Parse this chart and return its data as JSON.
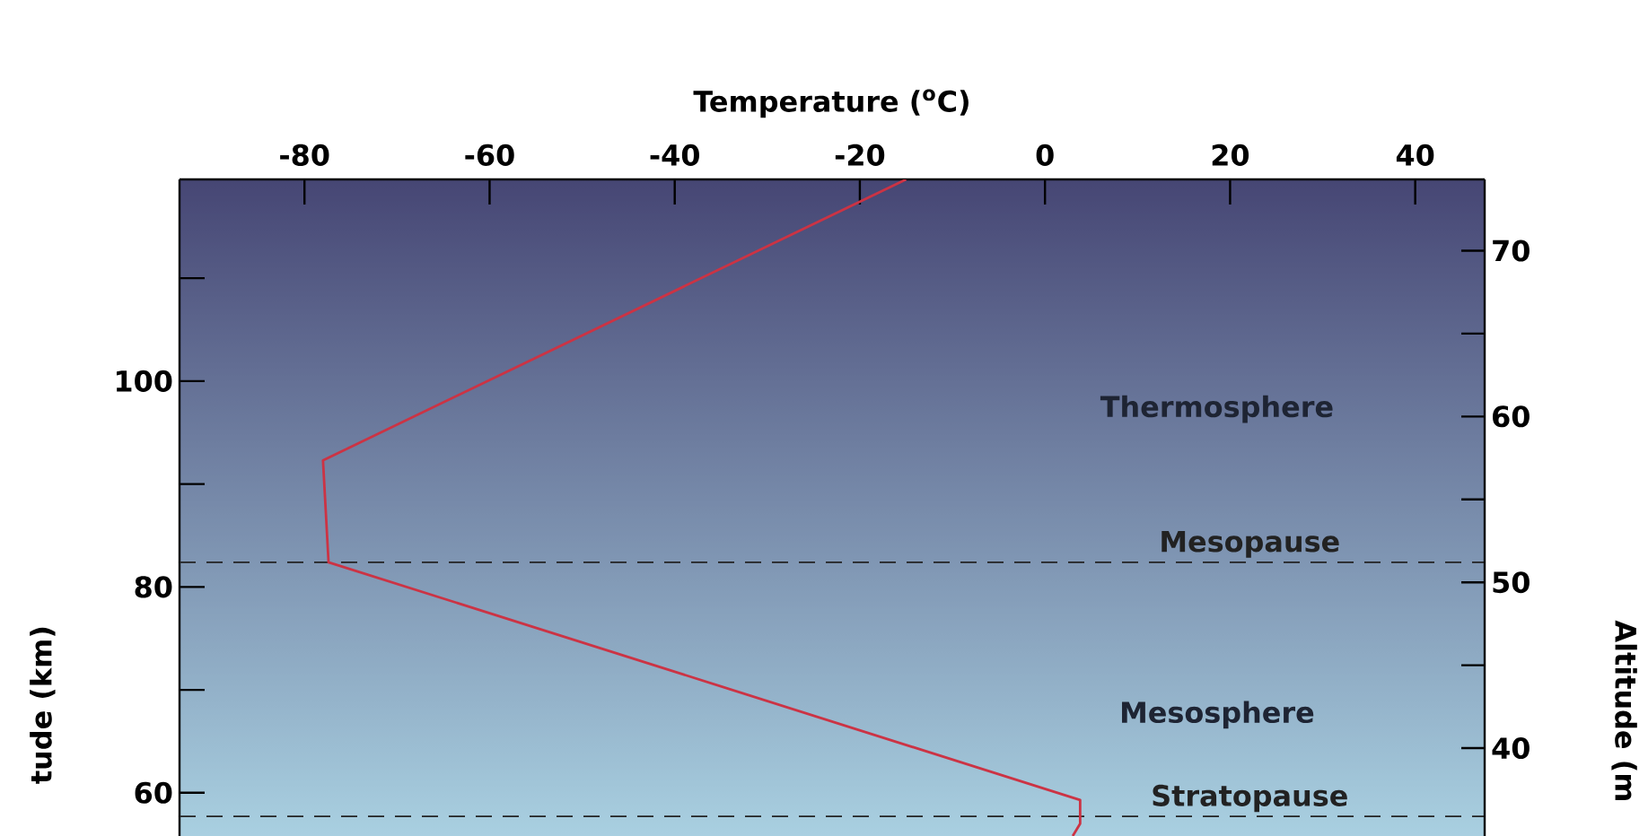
{
  "chart_data": {
    "type": "line",
    "xlabel": "Temperature ($^{o}$C)",
    "ylabel": "tude (km)",
    "y2label": "Altitude (m",
    "series": [
      {
        "color": "#cc3344",
        "x": [
          -15,
          -78,
          -77.4,
          3.8,
          3.8,
          3.0
        ],
        "values": [
          119.6,
          92.3,
          82.4,
          59.3,
          57.0,
          55.8
        ]
      }
    ],
    "xlim": [
      -93.5,
      47.5
    ],
    "xticks": [
      -80,
      -60,
      -40,
      -20,
      0,
      20,
      40
    ],
    "ylim": [
      55.8,
      119.6
    ],
    "yticks": [
      60,
      {
        "value": 70,
        "label": null
      },
      80,
      {
        "value": 90,
        "label": null
      },
      100,
      {
        "value": 110,
        "label": null
      }
    ],
    "y2lim": [
      34.7,
      74.3
    ],
    "y2ticks": [
      40,
      {
        "value": 45,
        "label": null
      },
      50,
      {
        "value": 55,
        "label": null
      },
      60,
      {
        "value": 65,
        "label": null
      },
      70
    ],
    "ref_lines": [
      {
        "axis": "y",
        "value": 82.4,
        "label": "Mesopause",
        "color": "#222222",
        "line_style": "dashed"
      },
      {
        "axis": "y",
        "value": 57.7,
        "label": "Stratopause",
        "color": "#222222",
        "line_style": "dashed"
      }
    ],
    "annotations": [
      "Thermosphere",
      "Mesosphere"
    ]
  }
}
